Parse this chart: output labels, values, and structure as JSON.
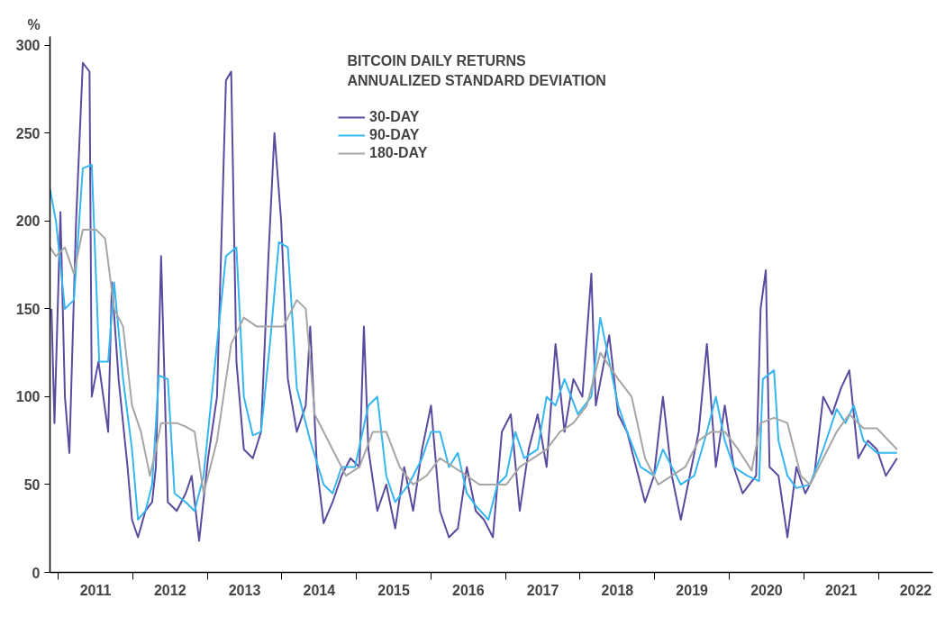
{
  "chart_data": {
    "type": "line",
    "title": "BITCOIN DAILY RETURNS",
    "subtitle": "ANNUALIZED STANDARD DEVIATION",
    "ylabel": "%",
    "xlim": [
      2010.89,
      2022.73
    ],
    "ylim": [
      0,
      305
    ],
    "yticks": [
      0,
      50,
      100,
      150,
      200,
      250,
      300
    ],
    "xticks": [
      {
        "value": 2011,
        "label": null
      },
      {
        "value": 2011.5,
        "label": "2011"
      },
      {
        "value": 2012,
        "label": null
      },
      {
        "value": 2012.5,
        "label": "2012"
      },
      {
        "value": 2013,
        "label": null
      },
      {
        "value": 2013.5,
        "label": "2013"
      },
      {
        "value": 2014,
        "label": null
      },
      {
        "value": 2014.5,
        "label": "2014"
      },
      {
        "value": 2015,
        "label": null
      },
      {
        "value": 2015.5,
        "label": "2015"
      },
      {
        "value": 2016,
        "label": null
      },
      {
        "value": 2016.5,
        "label": "2016"
      },
      {
        "value": 2017,
        "label": null
      },
      {
        "value": 2017.5,
        "label": "2017"
      },
      {
        "value": 2018,
        "label": null
      },
      {
        "value": 2018.5,
        "label": "2018"
      },
      {
        "value": 2019,
        "label": null
      },
      {
        "value": 2019.5,
        "label": "2019"
      },
      {
        "value": 2020,
        "label": null
      },
      {
        "value": 2020.5,
        "label": "2020"
      },
      {
        "value": 2021,
        "label": null
      },
      {
        "value": 2021.5,
        "label": "2021"
      },
      {
        "value": 2022,
        "label": null
      },
      {
        "value": 2022.5,
        "label": "2022"
      }
    ],
    "grid": false,
    "legend": "top",
    "line_style": "solid",
    "marker": "none",
    "series": [
      {
        "name": "30-DAY",
        "color": "#5b4a9e",
        "x": [
          2010.91,
          2010.95,
          2011.03,
          2011.09,
          2011.15,
          2011.24,
          2011.33,
          2011.42,
          2011.45,
          2011.54,
          2011.67,
          2011.72,
          2011.81,
          2011.93,
          2011.99,
          2012.07,
          2012.17,
          2012.26,
          2012.31,
          2012.38,
          2012.47,
          2012.59,
          2012.71,
          2012.79,
          2012.89,
          2013.01,
          2013.13,
          2013.25,
          2013.32,
          2013.39,
          2013.49,
          2013.61,
          2013.72,
          2013.82,
          2013.9,
          2013.99,
          2014.08,
          2014.2,
          2014.32,
          2014.38,
          2014.47,
          2014.56,
          2014.68,
          2014.8,
          2014.92,
          2015.04,
          2015.1,
          2015.16,
          2015.28,
          2015.4,
          2015.52,
          2015.64,
          2015.76,
          2015.88,
          2016.0,
          2016.12,
          2016.24,
          2016.36,
          2016.48,
          2016.6,
          2016.71,
          2016.83,
          2016.95,
          2017.07,
          2017.19,
          2017.31,
          2017.43,
          2017.55,
          2017.67,
          2017.79,
          2017.91,
          2018.03,
          2018.15,
          2018.21,
          2018.39,
          2018.51,
          2018.63,
          2018.75,
          2018.87,
          2018.99,
          2019.11,
          2019.23,
          2019.35,
          2019.47,
          2019.59,
          2019.7,
          2019.82,
          2019.94,
          2020.06,
          2020.18,
          2020.36,
          2020.42,
          2020.49,
          2020.54,
          2020.66,
          2020.78,
          2020.9,
          2021.02,
          2021.14,
          2021.26,
          2021.38,
          2021.5,
          2021.61,
          2021.73,
          2021.86,
          2021.98,
          2022.1,
          2022.25
        ],
        "values": [
          150,
          85,
          205,
          100,
          68,
          200,
          290,
          285,
          100,
          120,
          80,
          165,
          110,
          60,
          30,
          20,
          35,
          40,
          60,
          180,
          40,
          35,
          45,
          55,
          18,
          65,
          100,
          280,
          285,
          120,
          70,
          65,
          80,
          180,
          250,
          200,
          110,
          80,
          95,
          140,
          60,
          28,
          40,
          55,
          65,
          60,
          140,
          70,
          35,
          50,
          25,
          60,
          35,
          70,
          95,
          35,
          20,
          25,
          60,
          35,
          30,
          20,
          80,
          90,
          35,
          70,
          90,
          60,
          130,
          80,
          110,
          100,
          170,
          95,
          135,
          90,
          80,
          60,
          40,
          55,
          100,
          55,
          30,
          55,
          80,
          130,
          60,
          95,
          60,
          45,
          55,
          150,
          172,
          60,
          55,
          20,
          60,
          45,
          55,
          100,
          90,
          105,
          115,
          65,
          75,
          70,
          55,
          65
        ]
      },
      {
        "name": "90-DAY",
        "color": "#35b6f0",
        "x": [
          2010.89,
          2010.97,
          2011.09,
          2011.21,
          2011.33,
          2011.45,
          2011.55,
          2011.67,
          2011.75,
          2011.87,
          2011.99,
          2012.07,
          2012.17,
          2012.26,
          2012.35,
          2012.47,
          2012.56,
          2012.71,
          2012.83,
          2012.95,
          2013.13,
          2013.25,
          2013.39,
          2013.49,
          2013.61,
          2013.72,
          2013.84,
          2013.96,
          2014.08,
          2014.2,
          2014.38,
          2014.56,
          2014.68,
          2014.8,
          2014.98,
          2015.16,
          2015.28,
          2015.4,
          2015.52,
          2015.7,
          2015.88,
          2016.0,
          2016.12,
          2016.24,
          2016.36,
          2016.48,
          2016.6,
          2016.77,
          2016.89,
          2017.01,
          2017.13,
          2017.25,
          2017.43,
          2017.55,
          2017.67,
          2017.79,
          2017.97,
          2018.15,
          2018.27,
          2018.39,
          2018.51,
          2018.63,
          2018.81,
          2018.99,
          2019.11,
          2019.35,
          2019.53,
          2019.7,
          2019.82,
          2019.94,
          2020.06,
          2020.24,
          2020.4,
          2020.45,
          2020.6,
          2020.66,
          2020.78,
          2020.9,
          2021.08,
          2021.26,
          2021.44,
          2021.56,
          2021.67,
          2021.8,
          2021.98,
          2022.25
        ],
        "values": [
          218,
          200,
          150,
          155,
          230,
          232,
          120,
          120,
          165,
          110,
          70,
          30,
          35,
          50,
          112,
          110,
          45,
          40,
          35,
          55,
          130,
          180,
          185,
          100,
          78,
          80,
          130,
          188,
          185,
          105,
          75,
          50,
          45,
          60,
          60,
          95,
          100,
          55,
          40,
          50,
          65,
          80,
          80,
          60,
          68,
          45,
          38,
          30,
          50,
          55,
          80,
          65,
          70,
          100,
          95,
          110,
          90,
          100,
          145,
          120,
          95,
          80,
          60,
          55,
          70,
          50,
          55,
          80,
          100,
          75,
          60,
          55,
          52,
          110,
          115,
          75,
          55,
          48,
          50,
          70,
          93,
          85,
          95,
          75,
          68,
          68
        ]
      },
      {
        "name": "180-DAY",
        "color": "#a6a6a6",
        "x": [
          2010.89,
          2010.97,
          2011.09,
          2011.21,
          2011.33,
          2011.51,
          2011.63,
          2011.75,
          2011.87,
          2011.99,
          2012.11,
          2012.23,
          2012.31,
          2012.38,
          2012.59,
          2012.71,
          2012.83,
          2012.95,
          2013.13,
          2013.32,
          2013.49,
          2013.66,
          2013.84,
          2014.02,
          2014.2,
          2014.32,
          2014.44,
          2014.68,
          2014.86,
          2015.04,
          2015.22,
          2015.4,
          2015.58,
          2015.76,
          2015.94,
          2016.12,
          2016.3,
          2016.48,
          2016.65,
          2016.83,
          2017.01,
          2017.19,
          2017.37,
          2017.55,
          2017.73,
          2017.91,
          2018.09,
          2018.27,
          2018.51,
          2018.69,
          2018.87,
          2019.05,
          2019.23,
          2019.41,
          2019.59,
          2019.76,
          2019.94,
          2020.12,
          2020.3,
          2020.42,
          2020.6,
          2020.78,
          2020.96,
          2021.08,
          2021.26,
          2021.44,
          2021.61,
          2021.8,
          2021.98,
          2022.25
        ],
        "values": [
          185,
          180,
          185,
          170,
          195,
          195,
          190,
          150,
          140,
          95,
          80,
          55,
          70,
          85,
          85,
          83,
          80,
          45,
          75,
          130,
          145,
          140,
          140,
          140,
          155,
          150,
          90,
          70,
          55,
          60,
          80,
          80,
          60,
          50,
          55,
          65,
          60,
          55,
          50,
          50,
          50,
          60,
          65,
          70,
          80,
          85,
          95,
          125,
          110,
          100,
          65,
          50,
          55,
          60,
          75,
          80,
          80,
          70,
          58,
          85,
          88,
          85,
          55,
          50,
          65,
          80,
          90,
          82,
          82,
          70
        ]
      }
    ]
  }
}
